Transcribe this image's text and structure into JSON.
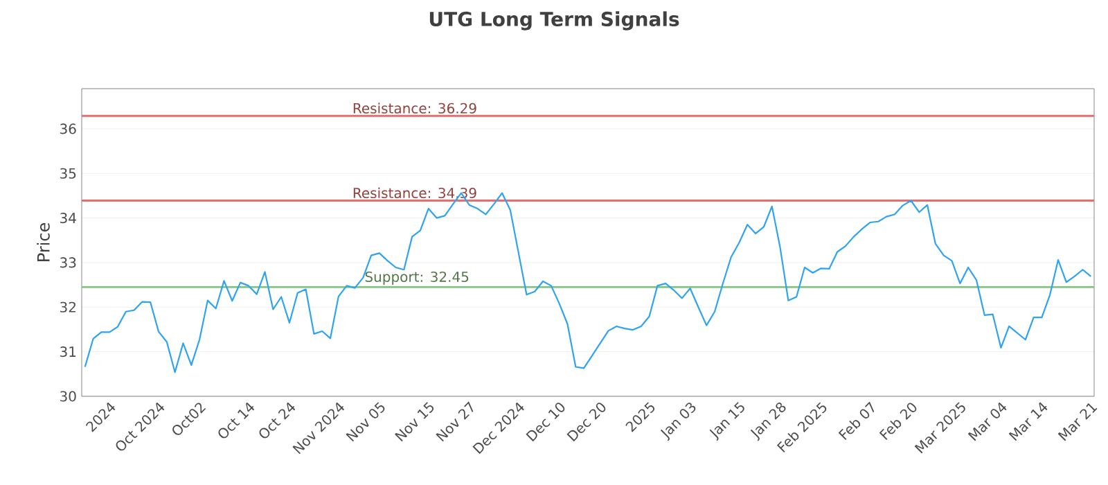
{
  "chart_data": {
    "type": "line",
    "title": "UTG Long Term Signals",
    "ylabel": "Price",
    "categories": [
      null,
      null,
      null,
      "2024",
      null,
      null,
      null,
      null,
      null,
      "Oct 2024",
      null,
      null,
      null,
      null,
      "Oct02",
      null,
      null,
      null,
      null,
      null,
      "Oct 14",
      null,
      null,
      null,
      null,
      "Oct 24",
      null,
      null,
      null,
      null,
      null,
      "Nov 2024",
      null,
      null,
      null,
      null,
      "Nov 05",
      null,
      null,
      null,
      null,
      null,
      "Nov 15",
      null,
      null,
      null,
      null,
      "Nov 27",
      null,
      null,
      null,
      null,
      null,
      "Dec 2024",
      null,
      null,
      null,
      null,
      "Dec 10",
      null,
      null,
      null,
      null,
      "Dec 20",
      null,
      null,
      null,
      null,
      null,
      "2025",
      null,
      null,
      null,
      null,
      "Jan 03",
      null,
      null,
      null,
      null,
      null,
      "Jan 15",
      null,
      null,
      null,
      null,
      "Jan 28",
      null,
      null,
      null,
      null,
      "Feb 2025",
      null,
      null,
      null,
      null,
      null,
      "Feb 07",
      null,
      null,
      null,
      null,
      "Feb 20",
      null,
      null,
      null,
      null,
      null,
      "Mar 2025",
      null,
      null,
      null,
      null,
      "Mar 04",
      null,
      null,
      null,
      null,
      "Mar 14",
      null,
      null,
      null,
      null,
      null,
      "Mar 21"
    ],
    "series": [
      {
        "color": "#2ea3f2",
        "values": [
          30.66,
          31.29,
          31.44,
          31.44,
          31.56,
          31.9,
          31.93,
          32.12,
          32.11,
          31.45,
          31.22,
          30.54,
          31.19,
          30.7,
          31.27,
          32.15,
          31.97,
          32.59,
          32.14,
          32.55,
          32.48,
          32.29,
          32.79,
          31.95,
          32.23,
          31.65,
          32.32,
          32.4,
          31.4,
          31.46,
          31.3,
          32.24,
          32.48,
          32.43,
          32.66,
          33.16,
          33.21,
          33.04,
          32.89,
          32.84,
          33.58,
          33.72,
          34.21,
          34.0,
          34.05,
          34.31,
          34.56,
          34.29,
          34.21,
          34.08,
          34.31,
          34.56,
          34.18,
          33.23,
          32.28,
          32.35,
          32.58,
          32.48,
          32.08,
          31.62,
          30.66,
          30.63,
          30.91,
          31.19,
          31.47,
          31.57,
          31.52,
          31.49,
          31.57,
          31.79,
          32.48,
          32.53,
          32.38,
          32.2,
          32.42,
          32.0,
          31.59,
          31.9,
          32.53,
          33.12,
          33.45,
          33.85,
          33.65,
          33.8,
          34.26,
          33.34,
          32.15,
          32.23,
          32.89,
          32.77,
          32.87,
          32.86,
          33.24,
          33.37,
          33.58,
          33.75,
          33.9,
          33.92,
          34.03,
          34.08,
          34.28,
          34.39,
          34.13,
          34.29,
          33.42,
          33.16,
          33.04,
          32.53,
          32.89,
          32.61,
          31.82,
          31.84,
          31.09,
          31.57,
          31.42,
          31.27,
          31.77,
          31.77,
          32.28,
          33.06,
          32.56,
          32.69,
          32.84,
          32.69
        ]
      }
    ],
    "ylim": [
      30,
      36.9
    ],
    "yticks": [
      30,
      31,
      32,
      33,
      34,
      35,
      36
    ],
    "ref_lines": [
      {
        "axis": "y",
        "value": 36.29,
        "label": "Resistance: 36.29",
        "color": "#e07070"
      },
      {
        "axis": "y",
        "value": 34.39,
        "label": "Resistance: 34.39",
        "color": "#e07070"
      },
      {
        "axis": "y",
        "value": 32.45,
        "label": "Support: 32.45",
        "color": "#80c880"
      }
    ],
    "grid": "y",
    "marker": "none",
    "line_style": "solid"
  }
}
